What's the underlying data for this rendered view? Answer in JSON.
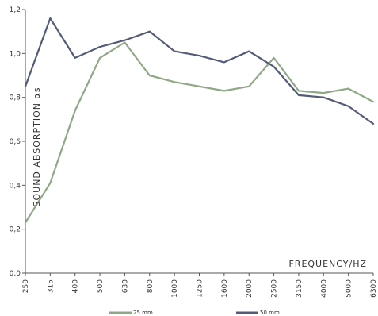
{
  "chart_data": {
    "type": "line",
    "ylabel": "SOUND ABSORPTION αs",
    "xlabel": "FREQUENCY/HZ",
    "categories": [
      "250",
      "315",
      "400",
      "500",
      "630",
      "800",
      "1000",
      "1250",
      "1600",
      "2000",
      "2500",
      "3150",
      "4000",
      "5000",
      "6300"
    ],
    "y_ticks": [
      "0,0",
      "0,2",
      "0,4",
      "0,6",
      "0,8",
      "1,0",
      "1,2"
    ],
    "ylim": [
      0,
      1.2
    ],
    "grid": false,
    "legend_position": "bottom",
    "series": [
      {
        "name": "25 mm",
        "color": "#8fa886",
        "values": [
          0.23,
          0.41,
          0.74,
          0.98,
          1.05,
          0.9,
          0.87,
          0.85,
          0.83,
          0.85,
          0.98,
          0.83,
          0.82,
          0.84,
          0.78
        ]
      },
      {
        "name": "50 mm",
        "color": "#545b78",
        "values": [
          0.85,
          1.16,
          0.98,
          1.03,
          1.06,
          1.1,
          1.01,
          0.99,
          0.96,
          1.01,
          0.94,
          0.81,
          0.8,
          0.76,
          0.68
        ]
      }
    ]
  }
}
